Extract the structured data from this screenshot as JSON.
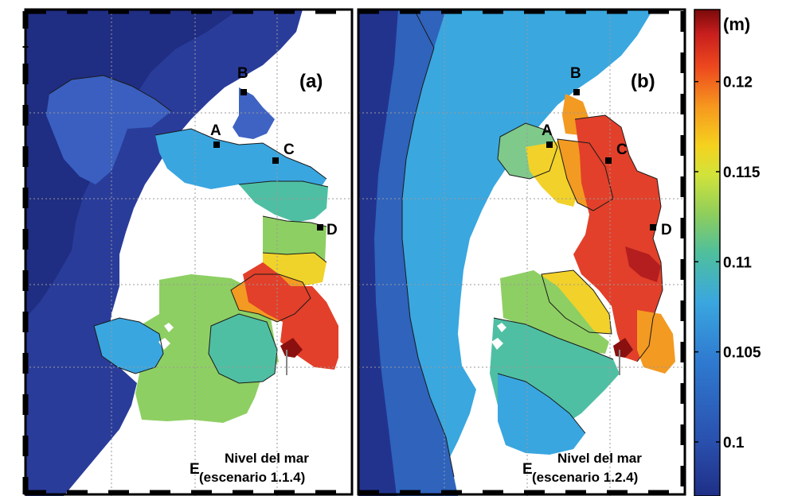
{
  "colors": {
    "ocean_deep": "#1a2a7c",
    "ocean_mid": "#2f4aa8",
    "ocean_light": "#3d6fc9",
    "land": "#ffffff",
    "grid": "#9a9a9a"
  },
  "colorbar": {
    "unit": "(m)",
    "ticks": [
      "0.12",
      "0.115",
      "0.11",
      "0.105",
      "0.1"
    ],
    "tick_values": [
      0.12,
      0.115,
      0.11,
      0.105,
      0.1
    ],
    "range": [
      0.097,
      0.124
    ],
    "colors": [
      "#7a0a0a",
      "#c81e1e",
      "#ee4a1e",
      "#f6981e",
      "#f5d21e",
      "#d2e33a",
      "#8fce5c",
      "#4fbf9c",
      "#3aa7df",
      "#2f7bd1",
      "#2a52b0",
      "#1f2f87"
    ]
  },
  "panels": [
    {
      "tag": "(a)",
      "points": {
        "A": "A",
        "B": "B",
        "C": "C",
        "D": "D",
        "E": "E"
      },
      "caption_line1": "Nivel del mar",
      "caption_line2": "(escenario 1.1.4)"
    },
    {
      "tag": "(b)",
      "points": {
        "A": "A",
        "B": "B",
        "C": "C",
        "D": "D",
        "E": "E"
      },
      "caption_line1": "Nivel del mar",
      "caption_line2": "(escenario 1.2.4)"
    }
  ]
}
